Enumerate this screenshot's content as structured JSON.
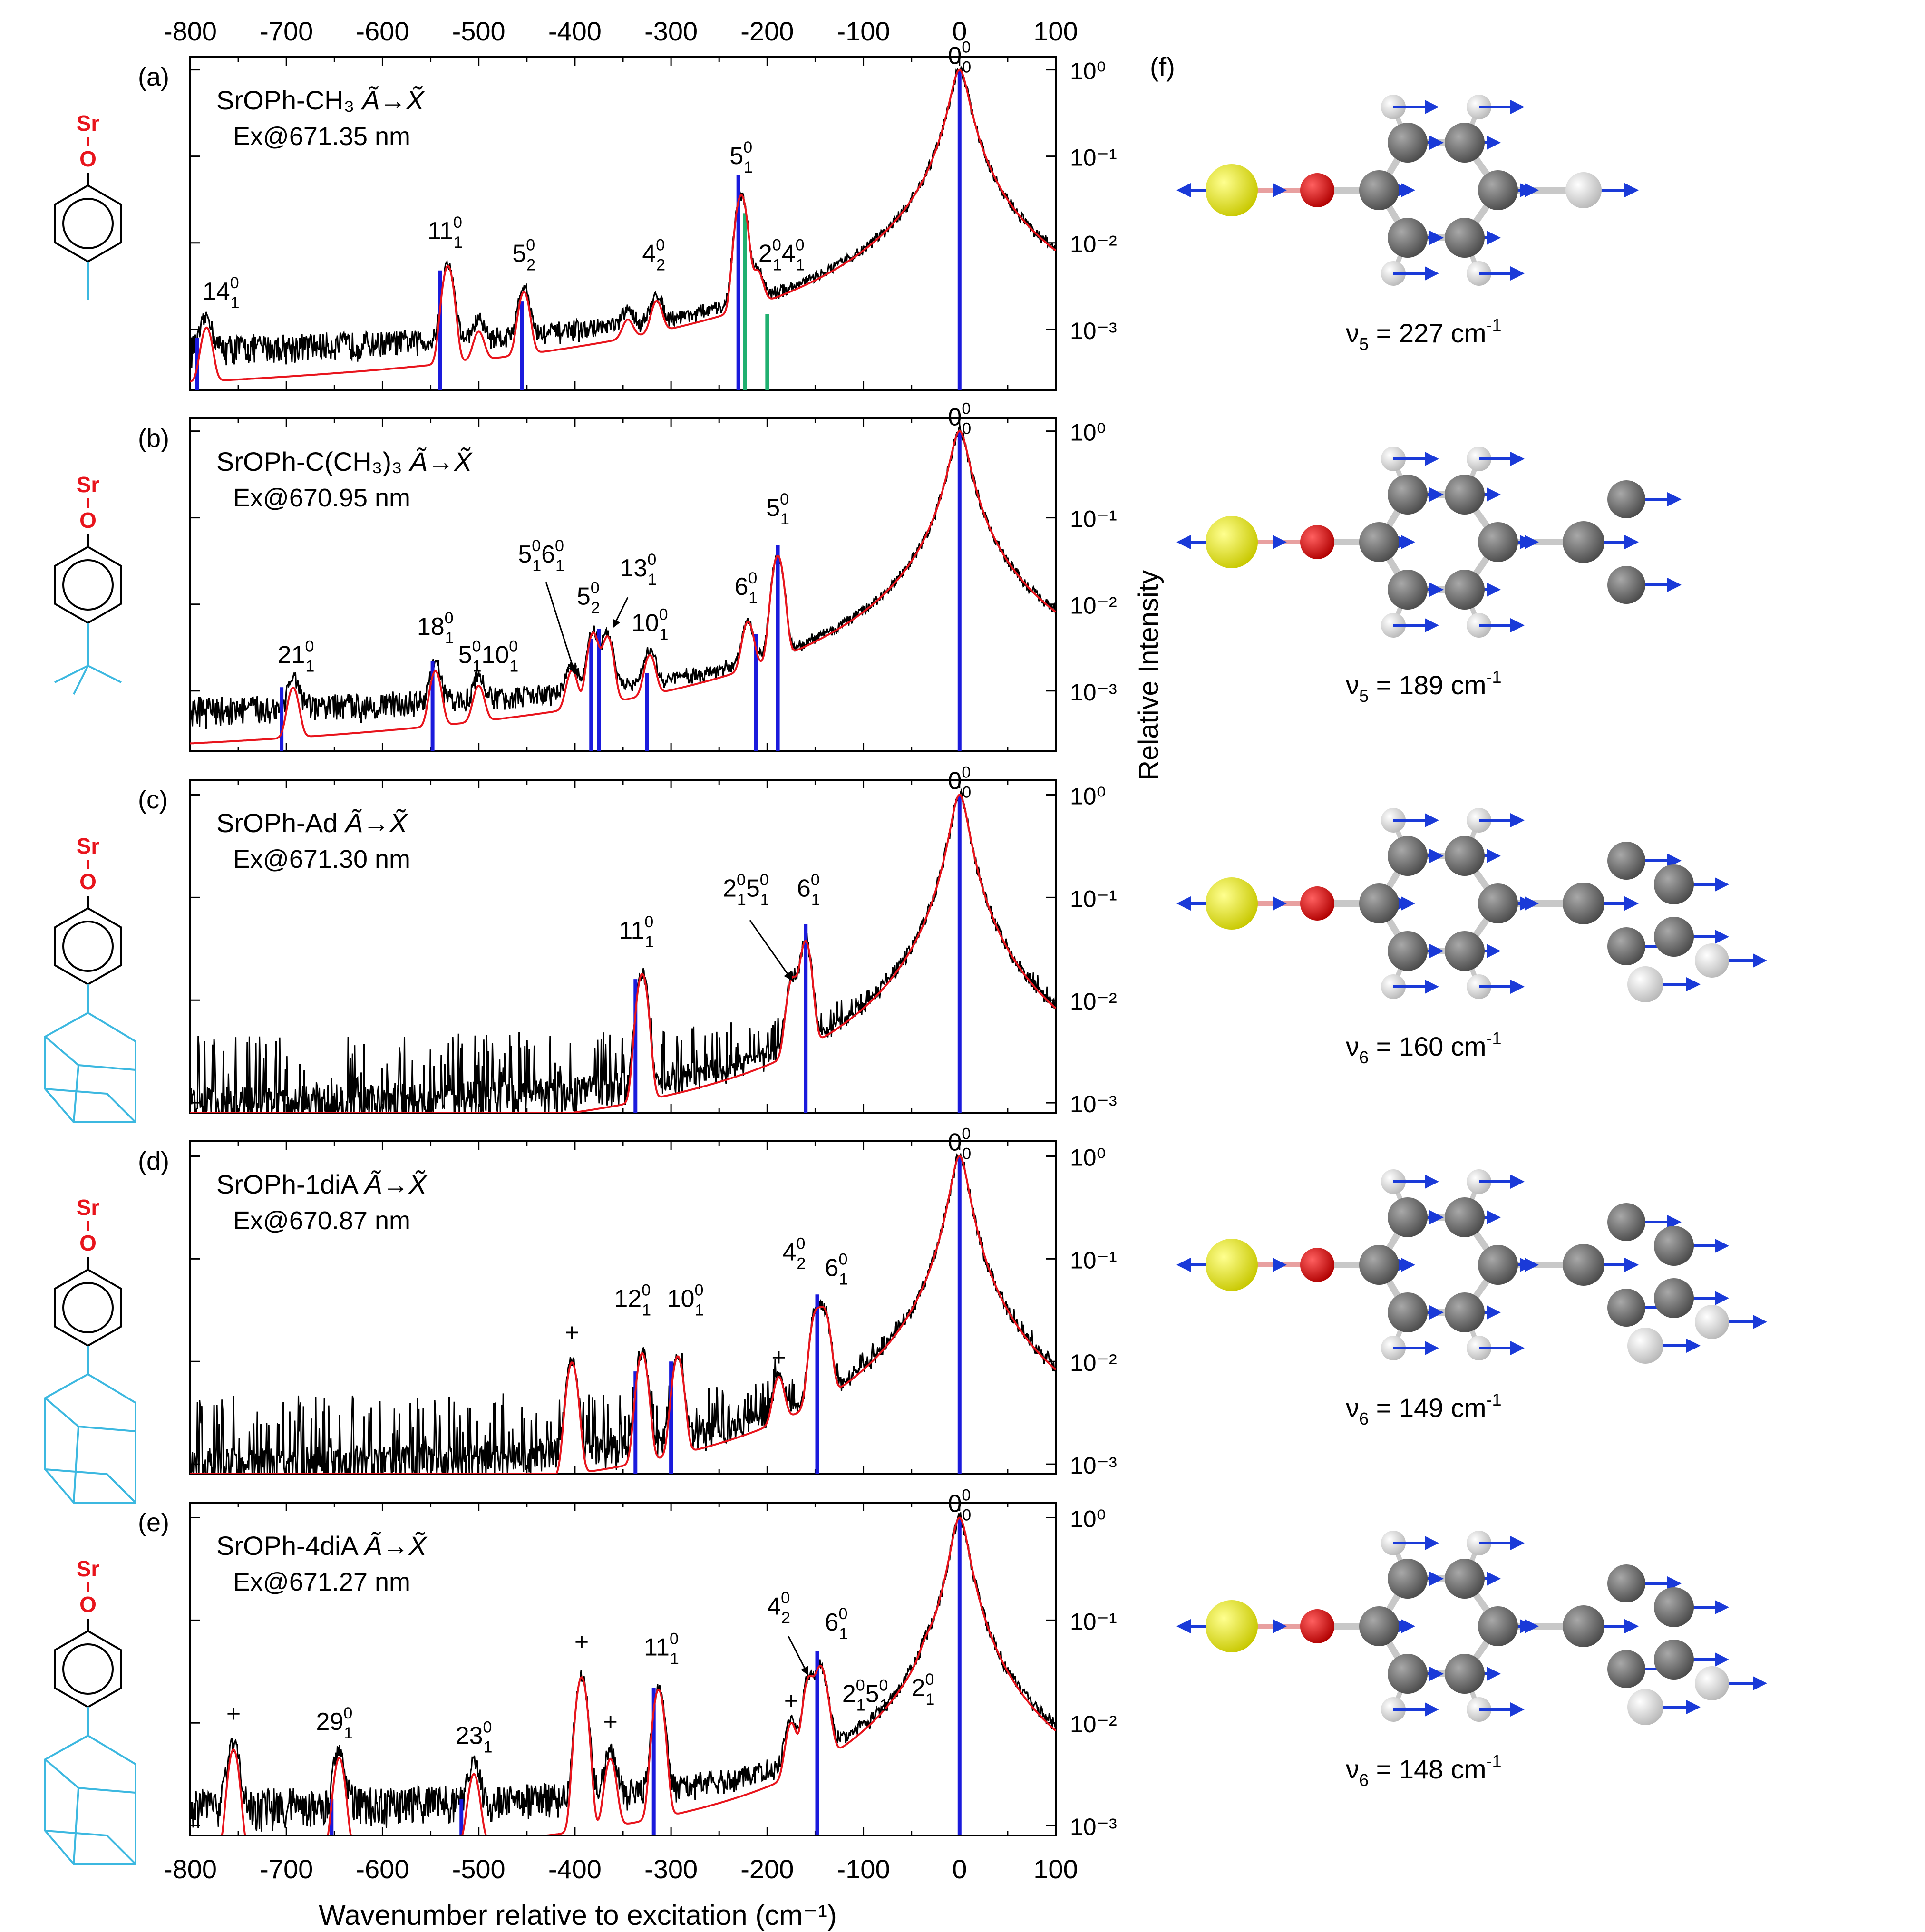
{
  "figure": {
    "x_axis_label": "Wavenumber relative to excitation (cm⁻¹)",
    "y_axis_label": "Relative Intensity",
    "x_ticks": [
      "-800",
      "-700",
      "-600",
      "-500",
      "-400",
      "-300",
      "-200",
      "-100",
      "0",
      "100"
    ],
    "colors": {
      "spectrum": "#000000",
      "fit": "#e8141c",
      "stick": "#1a1adc",
      "stick_alt": "#20b070",
      "sr": "#e8141c",
      "substituent": "#3cb8e0",
      "sr_atom": "#e8f000",
      "o_atom": "#e00000",
      "c_atom": "#707070",
      "h_atom": "#e6e6e6",
      "vector": "#1a3ad8"
    }
  },
  "chart_data": [
    {
      "type": "line",
      "panel": "(a)",
      "species": "SrOPh-CH₃",
      "transition": "Ã→X̃",
      "excitation": "Ex@671.35 nm",
      "xlim": [
        -800,
        100
      ],
      "ylim": [
        0.0002,
        1.4
      ],
      "yscale": "log",
      "y_ticks": [
        "10⁰",
        "10⁻¹",
        "10⁻²",
        "10⁻³"
      ],
      "noise_floor": 0.0004,
      "noise_type": "continuous",
      "peaks": [
        {
          "x": 0,
          "y": 1.0
        },
        {
          "x": -227,
          "y": 0.034
        },
        {
          "x": -210,
          "y": 0.0028
        },
        {
          "x": -315,
          "y": 0.0012
        },
        {
          "x": -453,
          "y": 0.0022
        },
        {
          "x": -532,
          "y": 0.005
        },
        {
          "x": -783,
          "y": 0.0008
        },
        {
          "x": -500,
          "y": 0.0005
        },
        {
          "x": -345,
          "y": 0.0005
        }
      ],
      "sticks": [
        {
          "x": 0,
          "y": 1.0
        },
        {
          "x": -230,
          "y": 0.06
        },
        {
          "x": -455,
          "y": 0.0021
        },
        {
          "x": -540,
          "y": 0.0048
        },
        {
          "x": -793,
          "y": 0.0008
        }
      ],
      "sticks_alt": [
        {
          "x": -223,
          "y": 0.022
        },
        {
          "x": -200,
          "y": 0.0015
        }
      ],
      "labels": [
        {
          "text": "0",
          "sup": "0",
          "sub": "0",
          "x": 0,
          "y": 1.0
        },
        {
          "text": "5",
          "sup": "0",
          "sub": "1",
          "x": -227,
          "y": 0.07
        },
        {
          "text": "2",
          "sup": "0",
          "sub": "1",
          "text2": "4",
          "sup2": "0",
          "sub2": "1",
          "x": -185,
          "y": 0.0052
        },
        {
          "text": "4",
          "sup": "0",
          "sub": "2",
          "x": -318,
          "y": 0.0052
        },
        {
          "text": "5",
          "sup": "0",
          "sub": "2",
          "x": -453,
          "y": 0.0052
        },
        {
          "text": "11",
          "sup": "0",
          "sub": "1",
          "x": -535,
          "y": 0.0095
        },
        {
          "text": "14",
          "sup": "0",
          "sub": "1",
          "x": -768,
          "y": 0.0019
        }
      ]
    },
    {
      "type": "line",
      "panel": "(b)",
      "species": "SrOPh-C(CH₃)₃",
      "transition": "Ã→X̃",
      "excitation": "Ex@670.95 nm",
      "xlim": [
        -800,
        100
      ],
      "ylim": [
        0.0002,
        1.4
      ],
      "yscale": "log",
      "y_ticks": [
        "10⁰",
        "10⁻¹",
        "10⁻²",
        "10⁻³"
      ],
      "noise_floor": 0.0004,
      "noise_type": "continuous",
      "peaks": [
        {
          "x": 0,
          "y": 1.0
        },
        {
          "x": -189,
          "y": 0.034
        },
        {
          "x": -220,
          "y": 0.0045
        },
        {
          "x": -322,
          "y": 0.0017
        },
        {
          "x": -366,
          "y": 0.0035
        },
        {
          "x": -381,
          "y": 0.004
        },
        {
          "x": -403,
          "y": 0.0011
        },
        {
          "x": -500,
          "y": 0.0007
        },
        {
          "x": -545,
          "y": 0.0013
        },
        {
          "x": -693,
          "y": 0.0008
        }
      ],
      "sticks": [
        {
          "x": 0,
          "y": 1.0
        },
        {
          "x": -189,
          "y": 0.048
        },
        {
          "x": -212,
          "y": 0.0045
        },
        {
          "x": -325,
          "y": 0.0016
        },
        {
          "x": -375,
          "y": 0.0052
        },
        {
          "x": -383,
          "y": 0.004
        },
        {
          "x": -548,
          "y": 0.0022
        },
        {
          "x": -705,
          "y": 0.0011
        }
      ],
      "sticks_alt": [],
      "labels": [
        {
          "text": "0",
          "sup": "0",
          "sub": "0",
          "x": 0,
          "y": 1.0
        },
        {
          "text": "5",
          "sup": "0",
          "sub": "1",
          "x": -189,
          "y": 0.09
        },
        {
          "text": "6",
          "sup": "0",
          "sub": "1",
          "x": -222,
          "y": 0.011
        },
        {
          "text": "10",
          "sup": "0",
          "sub": "1",
          "x": -322,
          "y": 0.0042
        },
        {
          "text": "13",
          "sup": "0",
          "sub": "1",
          "x": -334,
          "y": 0.018
        },
        {
          "text": "5",
          "sup": "0",
          "sub": "2",
          "x": -386,
          "y": 0.0085
        },
        {
          "text": "5",
          "sup": "0",
          "sub": "1",
          "text2": "6",
          "sup2": "0",
          "sub2": "1",
          "x": -435,
          "y": 0.026
        },
        {
          "text": "5",
          "sup": "0",
          "sub": "1",
          "text2": "10",
          "sup2": "0",
          "sub2": "1",
          "x": -490,
          "y": 0.0018
        },
        {
          "text": "18",
          "sup": "0",
          "sub": "1",
          "x": -545,
          "y": 0.0038
        },
        {
          "text": "21",
          "sup": "0",
          "sub": "1",
          "x": -690,
          "y": 0.0018
        }
      ]
    },
    {
      "type": "line",
      "panel": "(c)",
      "species": "SrOPh-Ad",
      "transition": "Ã→X̃",
      "excitation": "Ex@671.30 nm",
      "xlim": [
        -800,
        100
      ],
      "ylim": [
        0.0008,
        1.4
      ],
      "yscale": "log",
      "y_ticks": [
        "10⁰",
        "10⁻¹",
        "10⁻²",
        "10⁻³"
      ],
      "noise_floor": 0.001,
      "noise_type": "spiky",
      "peaks": [
        {
          "x": 0,
          "y": 1.0
        },
        {
          "x": -160,
          "y": 0.034
        },
        {
          "x": -174,
          "y": 0.013
        },
        {
          "x": -330,
          "y": 0.017
        }
      ],
      "sticks": [
        {
          "x": 0,
          "y": 1.0
        },
        {
          "x": -160,
          "y": 0.055
        },
        {
          "x": -337,
          "y": 0.016
        }
      ],
      "sticks_alt": [],
      "labels": [
        {
          "text": "0",
          "sup": "0",
          "sub": "0",
          "x": 0,
          "y": 1.0
        },
        {
          "text": "6",
          "sup": "0",
          "sub": "1",
          "x": -157,
          "y": 0.09
        },
        {
          "text": "2",
          "sup": "0",
          "sub": "1",
          "text2": "5",
          "sup2": "0",
          "sub2": "1",
          "x": -222,
          "y": 0.09
        },
        {
          "text": "11",
          "sup": "0",
          "sub": "1",
          "x": -336,
          "y": 0.035
        }
      ]
    },
    {
      "type": "line",
      "panel": "(d)",
      "species": "SrOPh-1diA",
      "transition": "Ã→X̃",
      "excitation": "Ex@670.87 nm",
      "xlim": [
        -800,
        100
      ],
      "ylim": [
        0.0008,
        1.4
      ],
      "yscale": "log",
      "y_ticks": [
        "10⁰",
        "10⁻¹",
        "10⁻²",
        "10⁻³"
      ],
      "noise_floor": 0.001,
      "noise_type": "spiky",
      "peaks": [
        {
          "x": 0,
          "y": 1.0
        },
        {
          "x": -140,
          "y": 0.025
        },
        {
          "x": -150,
          "y": 0.024
        },
        {
          "x": -188,
          "y": 0.0045
        },
        {
          "x": -293,
          "y": 0.01
        },
        {
          "x": -330,
          "y": 0.011
        },
        {
          "x": -403,
          "y": 0.009
        }
      ],
      "sticks": [
        {
          "x": 0,
          "y": 1.0
        },
        {
          "x": -148,
          "y": 0.045
        },
        {
          "x": -300,
          "y": 0.01
        },
        {
          "x": -337,
          "y": 0.008
        }
      ],
      "sticks_alt": [],
      "labels": [
        {
          "text": "0",
          "sup": "0",
          "sub": "0",
          "x": 0,
          "y": 1.0
        },
        {
          "text": "4",
          "sup": "0",
          "sub": "2",
          "x": -172,
          "y": 0.085
        },
        {
          "text": "6",
          "sup": "0",
          "sub": "1",
          "x": -128,
          "y": 0.06
        },
        {
          "text": "10",
          "sup": "0",
          "sub": "1",
          "x": -285,
          "y": 0.03
        },
        {
          "text": "12",
          "sup": "0",
          "sub": "1",
          "x": -340,
          "y": 0.03
        },
        {
          "text": "+",
          "x": -188,
          "y": 0.008
        },
        {
          "text": "+",
          "x": -403,
          "y": 0.014
        }
      ]
    },
    {
      "type": "line",
      "panel": "(e)",
      "species": "SrOPh-4diA",
      "transition": "Ã→X̃",
      "excitation": "Ex@671.27 nm",
      "xlim": [
        -800,
        100
      ],
      "ylim": [
        0.0008,
        1.4
      ],
      "yscale": "log",
      "y_ticks": [
        "10⁰",
        "10⁻¹",
        "10⁻²",
        "10⁻³"
      ],
      "noise_floor": 0.0012,
      "noise_type": "continuous",
      "peaks": [
        {
          "x": 0,
          "y": 1.0
        },
        {
          "x": -35,
          "y": 0.008
        },
        {
          "x": -138,
          "y": 0.007
        },
        {
          "x": -145,
          "y": 0.028
        },
        {
          "x": -157,
          "y": 0.023
        },
        {
          "x": -175,
          "y": 0.007
        },
        {
          "x": -313,
          "y": 0.02
        },
        {
          "x": -363,
          "y": 0.0035
        },
        {
          "x": -393,
          "y": 0.027
        },
        {
          "x": -505,
          "y": 0.0025
        },
        {
          "x": -645,
          "y": 0.004
        },
        {
          "x": -755,
          "y": 0.005
        }
      ],
      "sticks": [
        {
          "x": 0,
          "y": 1.0
        },
        {
          "x": -148,
          "y": 0.05
        },
        {
          "x": -318,
          "y": 0.022
        },
        {
          "x": -518,
          "y": 0.0018
        },
        {
          "x": -653,
          "y": 0.0018
        }
      ],
      "sticks_alt": [],
      "labels": [
        {
          "text": "0",
          "sup": "0",
          "sub": "0",
          "x": 0,
          "y": 1.0
        },
        {
          "text": "6",
          "sup": "0",
          "sub": "1",
          "x": -128,
          "y": 0.07
        },
        {
          "text": "4",
          "sup": "0",
          "sub": "2",
          "x": -188,
          "y": 0.1
        },
        {
          "text": "2",
          "sup": "0",
          "sub": "1",
          "text2": "5",
          "sup2": "0",
          "sub2": "1",
          "x": -98,
          "y": 0.014
        },
        {
          "text": "2",
          "sup": "0",
          "sub": "1",
          "x": -38,
          "y": 0.016
        },
        {
          "text": "11",
          "sup": "0",
          "sub": "1",
          "x": -310,
          "y": 0.04
        },
        {
          "text": "23",
          "sup": "0",
          "sub": "1",
          "x": -505,
          "y": 0.0055
        },
        {
          "text": "29",
          "sup": "0",
          "sub": "1",
          "x": -650,
          "y": 0.0075
        },
        {
          "text": "+",
          "x": -175,
          "y": 0.012
        },
        {
          "text": "+",
          "x": -363,
          "y": 0.0075
        },
        {
          "text": "+",
          "x": -393,
          "y": 0.045
        },
        {
          "text": "+",
          "x": -755,
          "y": 0.009
        }
      ]
    }
  ],
  "structures": [
    {
      "panel": "(a)",
      "sr": "Sr",
      "o": "O",
      "group": "methyl"
    },
    {
      "panel": "(b)",
      "sr": "Sr",
      "o": "O",
      "group": "tert-butyl"
    },
    {
      "panel": "(c)",
      "sr": "Sr",
      "o": "O",
      "group": "adamantyl"
    },
    {
      "panel": "(d)",
      "sr": "Sr",
      "o": "O",
      "group": "diamantyl-1"
    },
    {
      "panel": "(e)",
      "sr": "Sr",
      "o": "O",
      "group": "diamantyl-4"
    }
  ],
  "modes": {
    "label": "(f)",
    "items": [
      {
        "nu": "ν",
        "sub": "5",
        "value": " = 227 cm",
        "unit_sup": "-1",
        "size": "small"
      },
      {
        "nu": "ν",
        "sub": "5",
        "value": " = 189 cm",
        "unit_sup": "-1",
        "size": "medium"
      },
      {
        "nu": "ν",
        "sub": "6",
        "value": " = 160 cm",
        "unit_sup": "-1",
        "size": "large"
      },
      {
        "nu": "ν",
        "sub": "6",
        "value": " = 149 cm",
        "unit_sup": "-1",
        "size": "tilted"
      },
      {
        "nu": "ν",
        "sub": "6",
        "value": " = 148 cm",
        "unit_sup": "-1",
        "size": "large"
      }
    ]
  }
}
